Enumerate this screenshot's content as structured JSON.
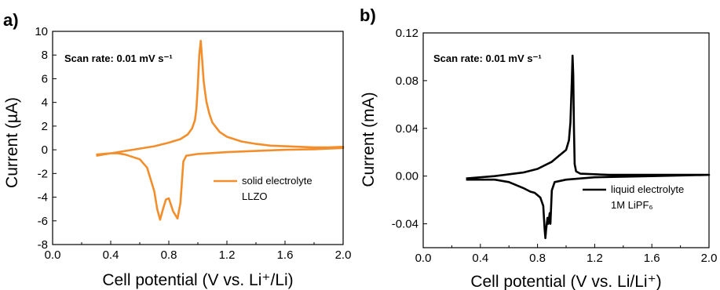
{
  "chart_data": [
    {
      "type": "line",
      "panel_label": "a)",
      "xlabel": "Cell potential (V vs. Li⁺/Li)",
      "ylabel": "Current (µA)",
      "annotation": "Scan rate: 0.01 mV s⁻¹",
      "xlim": [
        0.0,
        2.0
      ],
      "ylim": [
        -8,
        10
      ],
      "xticks": [
        "0.0",
        "0.4",
        "0.8",
        "1.2",
        "1.6",
        "2.0"
      ],
      "yticks": [
        "-8",
        "-6",
        "-4",
        "-2",
        "0",
        "2",
        "4",
        "6",
        "8",
        "10"
      ],
      "legend_position": "right",
      "series": [
        {
          "name": "solid electrolyte LLZO",
          "legend_lines": [
            "solid electrolyte",
            "LLZO"
          ],
          "color": "#f28e2b",
          "x": [
            0.3,
            0.4,
            0.5,
            0.6,
            0.7,
            0.8,
            0.88,
            0.93,
            0.96,
            0.98,
            0.99,
            1.0,
            1.01,
            1.02,
            1.03,
            1.04,
            1.05,
            1.06,
            1.08,
            1.1,
            1.15,
            1.2,
            1.3,
            1.4,
            1.5,
            1.6,
            1.7,
            1.8,
            1.9,
            2.0,
            2.0,
            1.9,
            1.8,
            1.6,
            1.4,
            1.2,
            1.0,
            0.92,
            0.9,
            0.88,
            0.86,
            0.83,
            0.8,
            0.78,
            0.76,
            0.74,
            0.72,
            0.7,
            0.65,
            0.6,
            0.5,
            0.45,
            0.4,
            0.3
          ],
          "y": [
            -0.5,
            -0.3,
            -0.1,
            0.1,
            0.3,
            0.6,
            0.9,
            1.3,
            1.8,
            2.5,
            3.5,
            5.5,
            8.0,
            9.2,
            7.5,
            5.8,
            4.8,
            4.0,
            3.0,
            2.3,
            1.5,
            1.1,
            0.7,
            0.5,
            0.35,
            0.3,
            0.25,
            0.2,
            0.2,
            0.25,
            0.15,
            0.1,
            0.05,
            0.0,
            -0.1,
            -0.2,
            -0.35,
            -0.5,
            -1.0,
            -4.5,
            -5.8,
            -5.2,
            -4.1,
            -4.2,
            -5.0,
            -5.9,
            -5.0,
            -3.5,
            -1.5,
            -0.8,
            -0.4,
            -0.3,
            -0.3,
            -0.4
          ]
        }
      ]
    },
    {
      "type": "line",
      "panel_label": "b)",
      "xlabel": "Cell potential (V vs. Li/Li⁺)",
      "ylabel": "Current (mA)",
      "annotation": "Scan rate: 0.01 mV s⁻¹",
      "xlim": [
        0.0,
        2.0
      ],
      "ylim": [
        -0.06,
        0.12
      ],
      "xticks": [
        "0.0",
        "0.4",
        "0.8",
        "1.2",
        "1.6",
        "2.0"
      ],
      "yticks": [
        "-0.04",
        "0.00",
        "0.04",
        "0.08",
        "0.12"
      ],
      "legend_position": "right",
      "series": [
        {
          "name": "liquid electrolyte 1M LiPF₆",
          "legend_lines": [
            "liquid electrolyte",
            "1M LiPF₆"
          ],
          "color": "#000000",
          "x": [
            0.3,
            0.5,
            0.7,
            0.8,
            0.9,
            0.95,
            0.98,
            1.0,
            1.02,
            1.03,
            1.04,
            1.045,
            1.05,
            1.055,
            1.06,
            1.07,
            1.1,
            1.3,
            1.6,
            2.0,
            2.0,
            1.6,
            1.2,
            1.0,
            0.92,
            0.9,
            0.89,
            0.885,
            0.875,
            0.87,
            0.86,
            0.855,
            0.85,
            0.84,
            0.82,
            0.8,
            0.78,
            0.75,
            0.7,
            0.6,
            0.5,
            0.3
          ],
          "y": [
            -0.002,
            0.0,
            0.003,
            0.006,
            0.012,
            0.017,
            0.02,
            0.022,
            0.03,
            0.045,
            0.08,
            0.101,
            0.085,
            0.04,
            0.01,
            0.004,
            0.002,
            0.001,
            0.001,
            0.001,
            0.001,
            0.0,
            -0.001,
            -0.003,
            -0.005,
            -0.012,
            -0.04,
            -0.031,
            -0.04,
            -0.035,
            -0.045,
            -0.052,
            -0.045,
            -0.025,
            -0.018,
            -0.016,
            -0.014,
            -0.013,
            -0.01,
            -0.005,
            -0.003,
            -0.003
          ]
        }
      ]
    }
  ]
}
